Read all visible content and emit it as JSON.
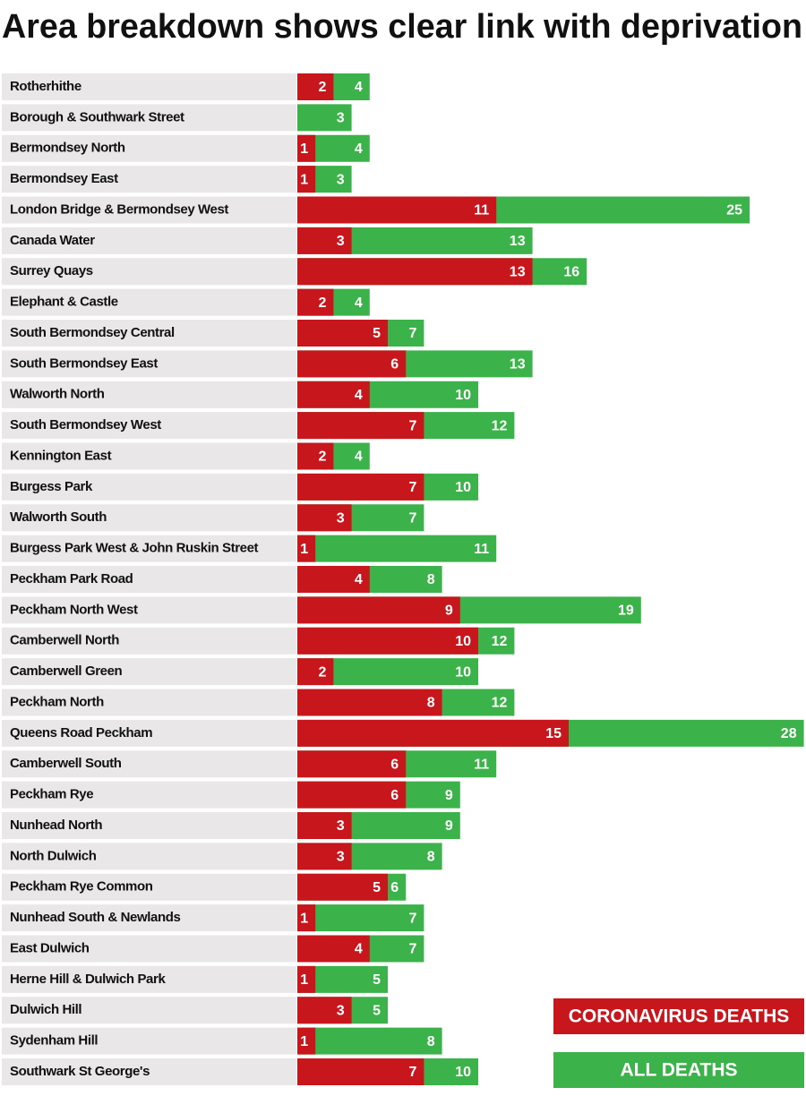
{
  "chart_data": {
    "type": "bar",
    "title": "Area breakdown shows clear link with deprivation",
    "categories": [
      "Rotherhithe",
      "Borough & Southwark Street",
      "Bermondsey North",
      "Bermondsey East",
      "London Bridge & Bermondsey West",
      "Canada Water",
      "Surrey Quays",
      "Elephant & Castle",
      "South Bermondsey Central",
      "South Bermondsey East",
      "Walworth North",
      "South Bermondsey West",
      "Kennington East",
      "Burgess Park",
      "Walworth South",
      "Burgess Park West & John Ruskin Street",
      "Peckham Park Road",
      "Peckham North West",
      "Camberwell North",
      "Camberwell Green",
      "Peckham North",
      "Queens Road Peckham",
      "Camberwell South",
      "Peckham Rye",
      "Nunhead North",
      "North Dulwich",
      "Peckham Rye Common",
      "Nunhead South & Newlands",
      "East Dulwich",
      "Herne Hill & Dulwich Park",
      "Dulwich Hill",
      "Sydenham Hill",
      "Southwark St George's"
    ],
    "series": [
      {
        "name": "ALL DEATHS",
        "color": "#3cb34a",
        "values": [
          4,
          3,
          4,
          3,
          25,
          13,
          16,
          4,
          7,
          13,
          10,
          12,
          4,
          10,
          7,
          11,
          8,
          19,
          12,
          10,
          12,
          28,
          11,
          9,
          9,
          8,
          6,
          7,
          7,
          5,
          5,
          8,
          10
        ]
      },
      {
        "name": "CORONAVIRUS DEATHS",
        "color": "#c8161d",
        "values": [
          2,
          0,
          1,
          1,
          11,
          3,
          13,
          2,
          5,
          6,
          4,
          7,
          2,
          7,
          3,
          1,
          4,
          9,
          10,
          2,
          8,
          15,
          6,
          6,
          3,
          3,
          5,
          1,
          4,
          1,
          3,
          1,
          7
        ],
        "value_labels": [
          "2",
          null,
          "1",
          "1",
          "11",
          "3",
          "13",
          "2",
          "5",
          "6",
          "4",
          "7",
          "2",
          "7",
          "3",
          "1",
          "4",
          "9",
          "10",
          "2",
          "8",
          "15",
          "6",
          "6",
          "3",
          "3",
          "5",
          "1",
          "4",
          "1",
          "3",
          "1",
          "7"
        ]
      }
    ]
  }
}
